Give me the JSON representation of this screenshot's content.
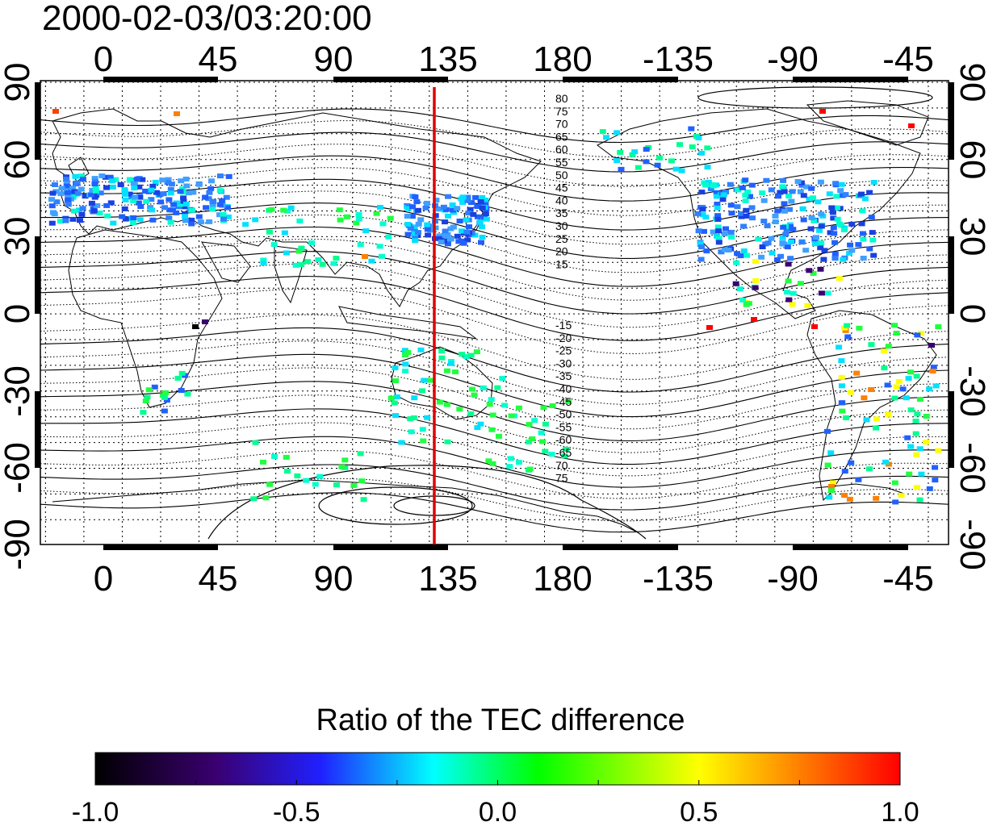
{
  "title": "2000-02-03/03:20:00",
  "map": {
    "top_lon_labels": [
      "0",
      "45",
      "90",
      "135",
      "180",
      "-135",
      "-90",
      "-45"
    ],
    "bottom_lon_labels": [
      "0",
      "45",
      "90",
      "135",
      "180",
      "-135",
      "-90",
      "-45"
    ],
    "left_lat_labels": [
      "90",
      "60",
      "30",
      "0",
      "-30",
      "-60",
      "-90"
    ],
    "right_lat_labels": [
      "90",
      "60",
      "30",
      "0",
      "-30",
      "-60",
      "-90"
    ],
    "contour_labels_north": [
      "80",
      "75",
      "70",
      "65",
      "60",
      "55",
      "50",
      "45",
      "40",
      "35",
      "30",
      "25",
      "20",
      "15"
    ],
    "contour_labels_south": [
      "-15",
      "-20",
      "-25",
      "-30",
      "-35",
      "-40",
      "-45",
      "-50",
      "-55",
      "-60",
      "-65",
      "70",
      "75"
    ],
    "meridian_line_lon": 135,
    "meridian_line_color": "#e00000"
  },
  "colorbar": {
    "title": "Ratio of the TEC difference",
    "tick_labels": [
      "-1.0",
      "-0.5",
      "0.0",
      "0.5",
      "1.0"
    ],
    "min": -1.0,
    "max": 1.0,
    "colors": [
      "#000000",
      "#3a0070",
      "#2020ff",
      "#00ffff",
      "#00ff00",
      "#ffff00",
      "#ff0000"
    ]
  }
}
